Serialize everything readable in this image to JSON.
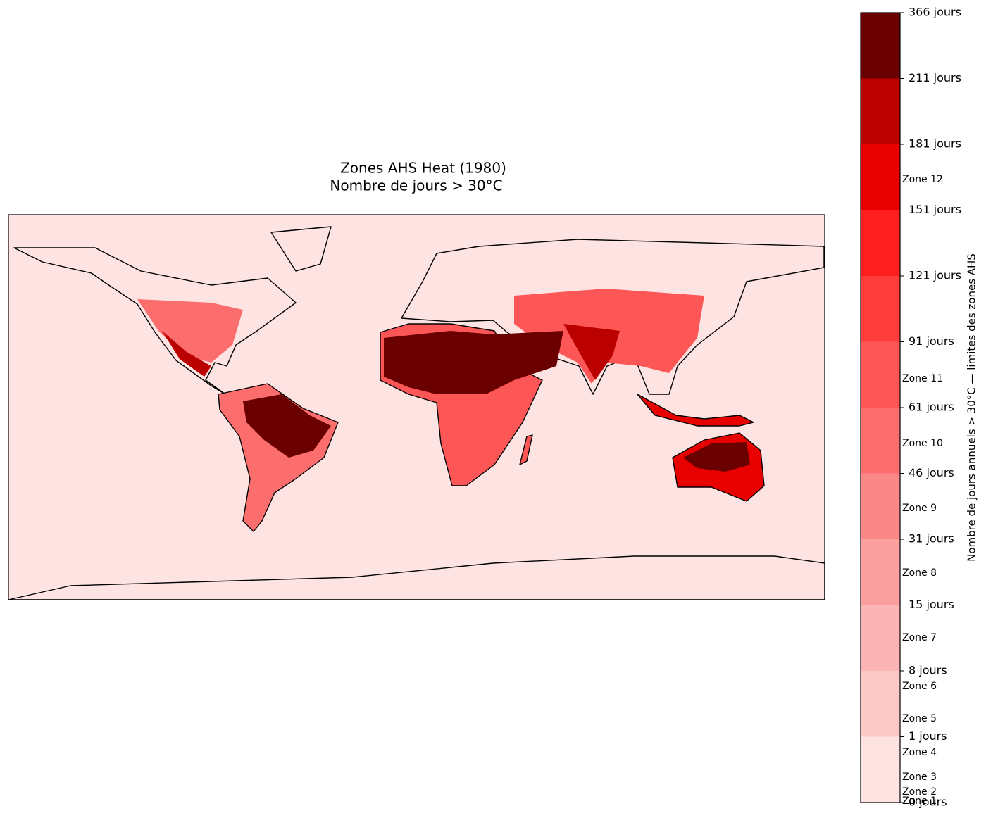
{
  "chart_data": {
    "type": "map",
    "title": "Zones AHS Heat (1980)",
    "subtitle": "Nombre de jours > 30°C",
    "colorbar": {
      "label": "Nombre de jours annuels > 30°C — limites des zones AHS",
      "ticks": [
        {
          "value": 0,
          "label": "0 jours"
        },
        {
          "value": 1,
          "label": "1 jours"
        },
        {
          "value": 8,
          "label": "8 jours"
        },
        {
          "value": 15,
          "label": "15 jours"
        },
        {
          "value": 31,
          "label": "31 jours"
        },
        {
          "value": 46,
          "label": "46 jours"
        },
        {
          "value": 61,
          "label": "61 jours"
        },
        {
          "value": 91,
          "label": "91 jours"
        },
        {
          "value": 121,
          "label": "121 jours"
        },
        {
          "value": 151,
          "label": "151 jours"
        },
        {
          "value": 181,
          "label": "181 jours"
        },
        {
          "value": 211,
          "label": "211 jours"
        },
        {
          "value": 366,
          "label": "366 jours"
        }
      ],
      "colors": [
        "#fee3e3",
        "#fdc8c8",
        "#fdb4b4",
        "#fc9f9f",
        "#fc8787",
        "#fc6e6e",
        "#fd5656",
        "#fe3c3c",
        "#ff1f1f",
        "#e80000",
        "#bb0000",
        "#6b0000"
      ],
      "zone_labels": [
        "Zone 1",
        "Zone 2",
        "Zone 3",
        "Zone 4",
        "Zone 5",
        "Zone 6",
        "Zone 7",
        "Zone 8",
        "Zone 9",
        "Zone 10",
        "Zone 11",
        "Zone 12"
      ]
    }
  }
}
